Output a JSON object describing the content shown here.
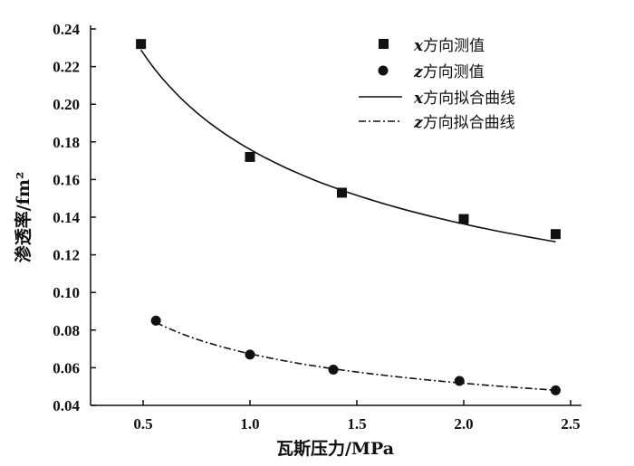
{
  "chart_data": {
    "type": "scatter",
    "title": "",
    "xlabel": "瓦斯压力/MPa",
    "ylabel": "渗透率/fm²",
    "xlim": [
      0.25,
      2.7
    ],
    "ylim": [
      0.04,
      0.24
    ],
    "xticks": [
      0.5,
      1.0,
      1.5,
      2.0,
      2.5
    ],
    "xtick_labels": [
      "0.5",
      "1.0",
      "1.5",
      "2.0",
      "2.5"
    ],
    "yticks": [
      0.04,
      0.06,
      0.08,
      0.1,
      0.12,
      0.14,
      0.16,
      0.18,
      0.2,
      0.22,
      0.24
    ],
    "ytick_labels": [
      "0.04",
      "0.06",
      "0.08",
      "0.10",
      "0.12",
      "0.14",
      "0.16",
      "0.18",
      "0.20",
      "0.22",
      "0.24"
    ],
    "grid": false,
    "legend_position": "top-right",
    "series": [
      {
        "name": "x方向测值",
        "kind": "scatter",
        "marker": "square",
        "x": [
          0.49,
          1.0,
          1.43,
          2.0,
          2.43
        ],
        "y": [
          0.232,
          0.172,
          0.153,
          0.139,
          0.131
        ]
      },
      {
        "name": "z方向测值",
        "kind": "scatter",
        "marker": "circle",
        "x": [
          0.56,
          1.0,
          1.39,
          1.98,
          2.43
        ],
        "y": [
          0.085,
          0.067,
          0.059,
          0.053,
          0.048
        ]
      },
      {
        "name": "x方向拟合曲线",
        "kind": "line",
        "style": "solid",
        "model": "power",
        "a": 0.176,
        "b": -0.368,
        "xrange": [
          0.49,
          2.43
        ]
      },
      {
        "name": "z方向拟合曲线",
        "kind": "line",
        "style": "dashdot",
        "model": "power",
        "a": 0.0674,
        "b": -0.381,
        "xrange": [
          0.56,
          2.43
        ]
      }
    ],
    "legend": [
      {
        "prefix": "x",
        "text": "方向测值"
      },
      {
        "prefix": "z",
        "text": "方向测值"
      },
      {
        "prefix": "x",
        "text": "方向拟合曲线"
      },
      {
        "prefix": "z",
        "text": "方向拟合曲线"
      }
    ]
  }
}
